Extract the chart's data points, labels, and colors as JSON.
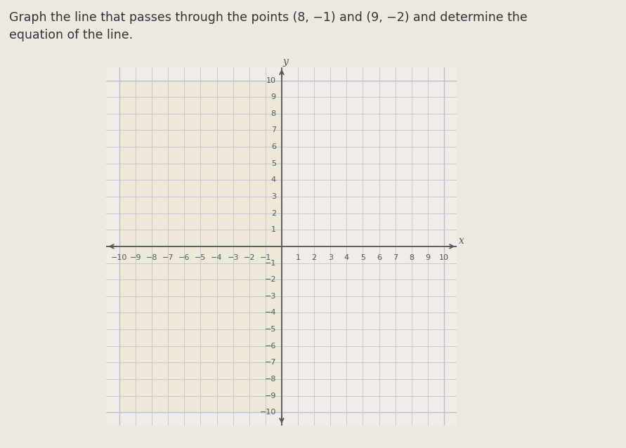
{
  "title_line1": "Graph the line that passes through the points (8, −1) and (9, −2) and determine the",
  "title_line2": "equation of the line.",
  "title_fontsize": 12.5,
  "title_color": "#333333",
  "bg_outer": "#ede8e0",
  "bg_grid_left": "#ede8d8",
  "bg_grid_right": "#f0ede8",
  "grid_color": "#c0bcd0",
  "axis_color": "#555555",
  "x_min": -10,
  "x_max": 10,
  "y_min": -10,
  "y_max": 10,
  "xlabel": "x",
  "ylabel": "y",
  "tick_fontsize": 8
}
